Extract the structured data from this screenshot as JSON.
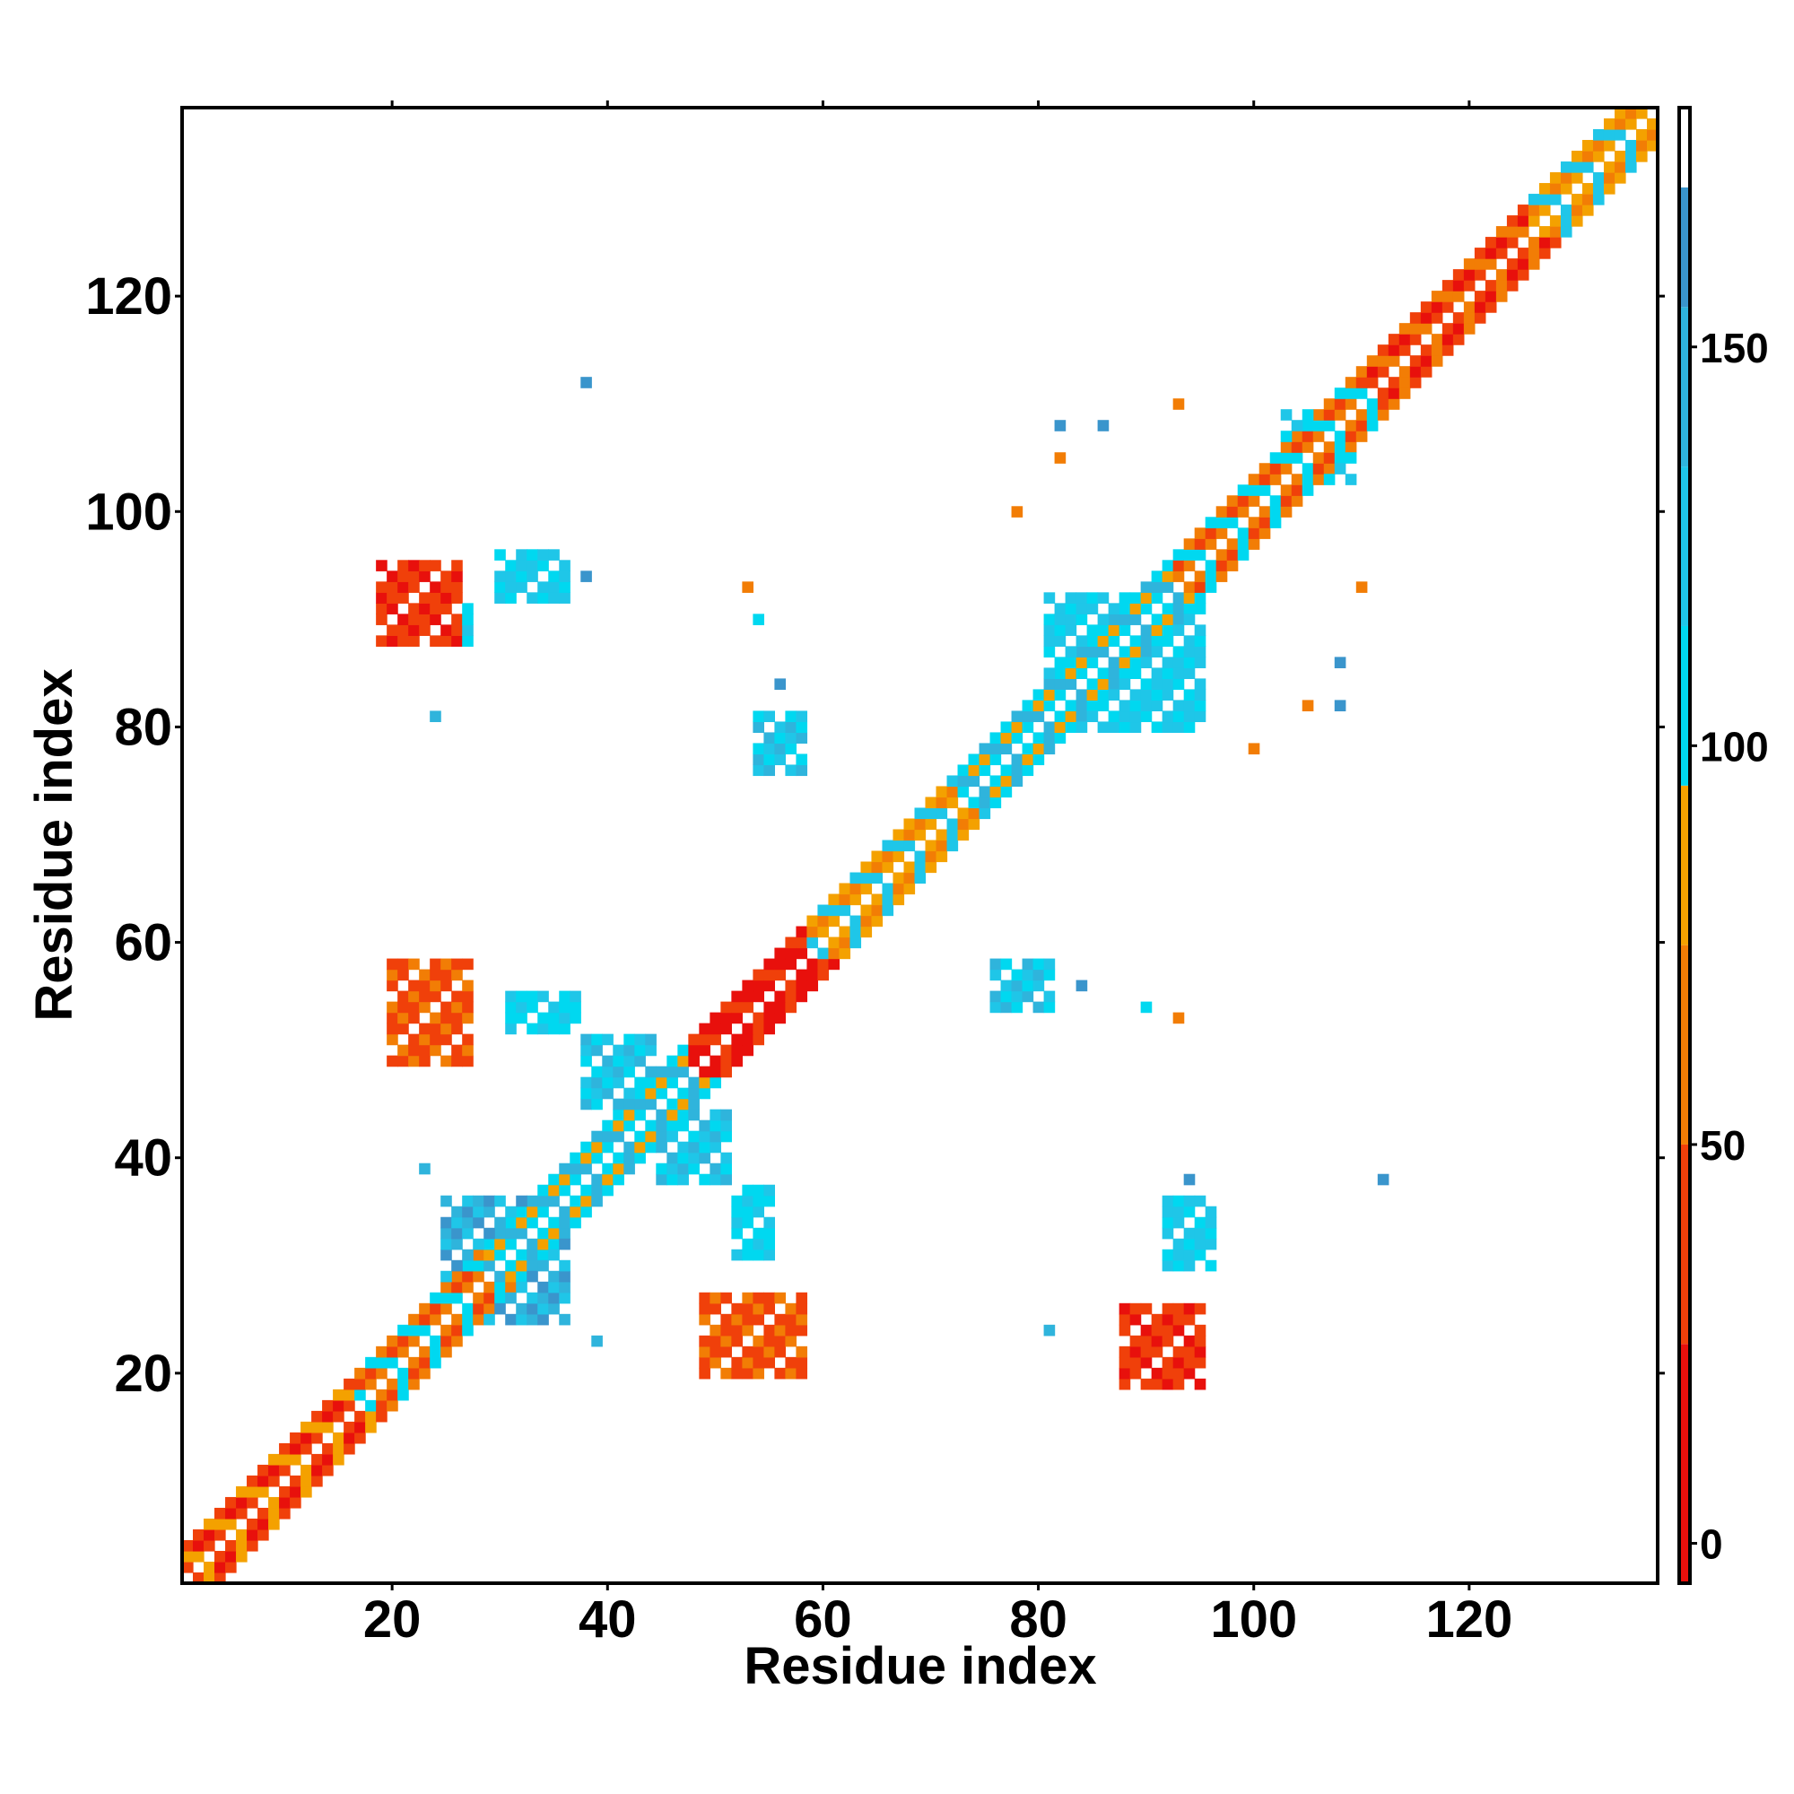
{
  "chart_data": {
    "type": "heatmap",
    "title": "",
    "xlabel": "Residue index",
    "ylabel": "Residue index",
    "xlim": [
      0.5,
      137.5
    ],
    "ylim": [
      0.5,
      137.5
    ],
    "x_ticks": [
      20,
      40,
      60,
      80,
      100,
      120
    ],
    "y_ticks": [
      20,
      40,
      60,
      80,
      100,
      120
    ],
    "n_residues": 137,
    "grid": false,
    "legend": "colorbar-right",
    "colorbar": {
      "range": [
        -5,
        180
      ],
      "ticks": [
        0,
        50,
        100,
        150
      ],
      "stops": [
        {
          "from": -5,
          "to": 25,
          "color": "#e8100c"
        },
        {
          "from": 25,
          "to": 50,
          "color": "#f0400a"
        },
        {
          "from": 50,
          "to": 75,
          "color": "#f27d05"
        },
        {
          "from": 75,
          "to": 95,
          "color": "#f4a100"
        },
        {
          "from": 95,
          "to": 115,
          "color": "#00d8f0"
        },
        {
          "from": 115,
          "to": 135,
          "color": "#1fc6e8"
        },
        {
          "from": 135,
          "to": 155,
          "color": "#2fb4dc"
        },
        {
          "from": 155,
          "to": 170,
          "color": "#3a95cc"
        },
        {
          "from": 170,
          "to": 180,
          "color": "#ffffff"
        }
      ]
    },
    "diagonal_bands": [
      {
        "from": 1,
        "to": 16,
        "value": 35
      },
      {
        "from": 16,
        "to": 28,
        "value": 60
      },
      {
        "from": 28,
        "to": 47,
        "value": 100
      },
      {
        "from": 47,
        "to": 58,
        "value": 5
      },
      {
        "from": 58,
        "to": 72,
        "value": 80
      },
      {
        "from": 72,
        "to": 92,
        "value": 110
      },
      {
        "from": 92,
        "to": 110,
        "value": 65
      },
      {
        "from": 110,
        "to": 125,
        "value": 30
      },
      {
        "from": 125,
        "to": 137,
        "value": 85
      }
    ],
    "contact_patches": [
      {
        "x": [
          20,
          27
        ],
        "y": [
          49,
          58
        ],
        "value": 40
      },
      {
        "x": [
          49,
          58
        ],
        "y": [
          20,
          27
        ],
        "value": 40
      },
      {
        "x": [
          19,
          26
        ],
        "y": [
          88,
          95
        ],
        "value": 30
      },
      {
        "x": [
          88,
          95
        ],
        "y": [
          19,
          26
        ],
        "value": 30
      },
      {
        "x": [
          22,
          27
        ],
        "y": [
          88,
          91
        ],
        "value": 110
      },
      {
        "x": [
          30,
          36
        ],
        "y": [
          92,
          96
        ],
        "value": 115
      },
      {
        "x": [
          92,
          96
        ],
        "y": [
          30,
          36
        ],
        "value": 115
      },
      {
        "x": [
          54,
          58
        ],
        "y": [
          76,
          81
        ],
        "value": 120
      },
      {
        "x": [
          76,
          81
        ],
        "y": [
          54,
          58
        ],
        "value": 120
      },
      {
        "x": [
          31,
          37
        ],
        "y": [
          52,
          55
        ],
        "value": 110
      },
      {
        "x": [
          52,
          55
        ],
        "y": [
          31,
          37
        ],
        "value": 110
      },
      {
        "x": [
          81,
          95
        ],
        "y": [
          80,
          92
        ],
        "value": 115
      },
      {
        "x": [
          29,
          36
        ],
        "y": [
          25,
          33
        ],
        "value": 140
      },
      {
        "x": [
          25,
          33
        ],
        "y": [
          29,
          36
        ],
        "value": 140
      },
      {
        "x": [
          38,
          44
        ],
        "y": [
          45,
          51
        ],
        "value": 120
      },
      {
        "x": [
          45,
          51
        ],
        "y": [
          38,
          44
        ],
        "value": 120
      },
      {
        "x": [
          103,
          109
        ],
        "y": [
          103,
          109
        ],
        "value": 110
      }
    ],
    "contact_points": [
      {
        "x": 38,
        "y": 112,
        "value": 160
      },
      {
        "x": 38,
        "y": 94,
        "value": 160
      },
      {
        "x": 112,
        "y": 38,
        "value": 160
      },
      {
        "x": 94,
        "y": 38,
        "value": 160
      },
      {
        "x": 82,
        "y": 108,
        "value": 160
      },
      {
        "x": 86,
        "y": 108,
        "value": 160
      },
      {
        "x": 108,
        "y": 82,
        "value": 160
      },
      {
        "x": 108,
        "y": 86,
        "value": 160
      },
      {
        "x": 82,
        "y": 105,
        "value": 60
      },
      {
        "x": 78,
        "y": 100,
        "value": 50
      },
      {
        "x": 100,
        "y": 78,
        "value": 50
      },
      {
        "x": 93,
        "y": 110,
        "value": 70
      },
      {
        "x": 110,
        "y": 93,
        "value": 70
      },
      {
        "x": 105,
        "y": 82,
        "value": 60
      },
      {
        "x": 56,
        "y": 84,
        "value": 160
      },
      {
        "x": 84,
        "y": 56,
        "value": 160
      },
      {
        "x": 24,
        "y": 81,
        "value": 150
      },
      {
        "x": 81,
        "y": 24,
        "value": 150
      },
      {
        "x": 23,
        "y": 39,
        "value": 150
      },
      {
        "x": 39,
        "y": 23,
        "value": 150
      },
      {
        "x": 53,
        "y": 93,
        "value": 60
      },
      {
        "x": 93,
        "y": 53,
        "value": 60
      },
      {
        "x": 54,
        "y": 90,
        "value": 110
      },
      {
        "x": 90,
        "y": 54,
        "value": 110
      }
    ]
  }
}
